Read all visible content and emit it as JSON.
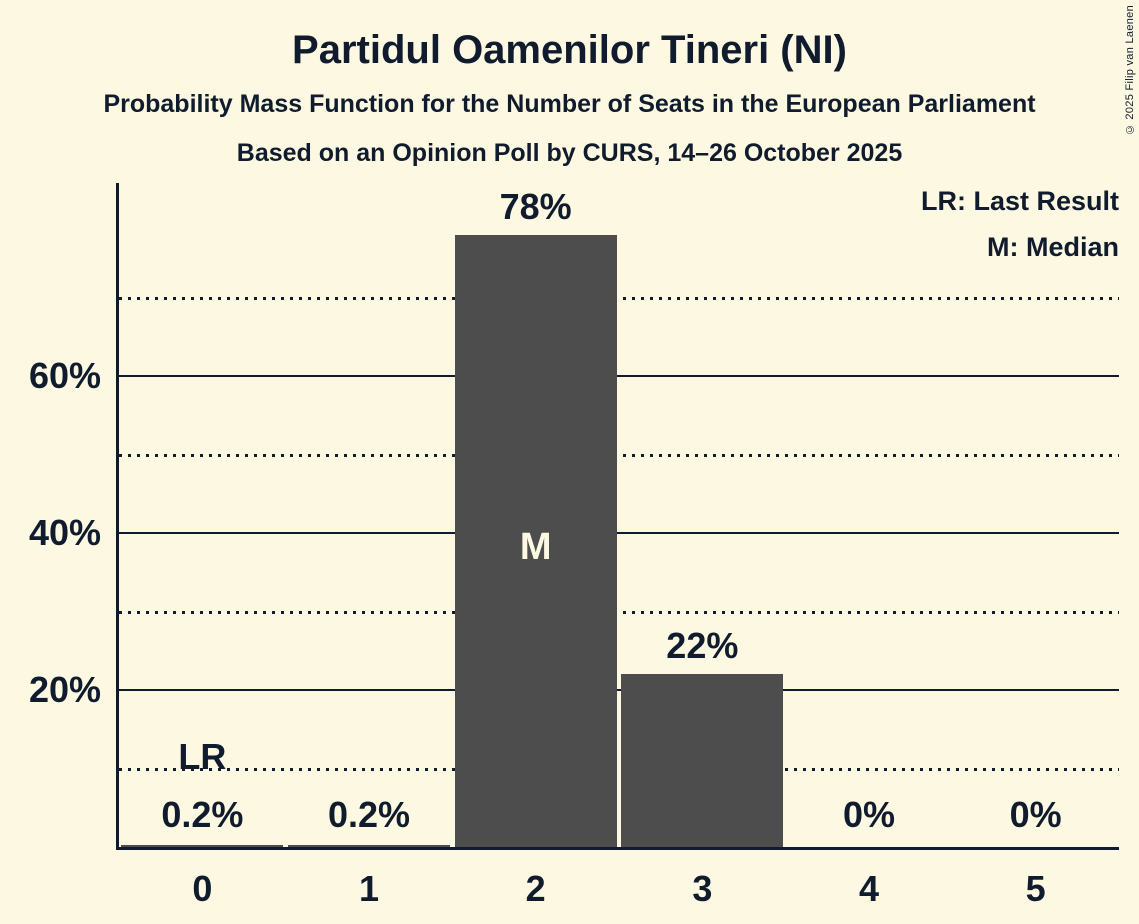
{
  "title": "Partidul Oamenilor Tineri (NI)",
  "subtitle1": "Probability Mass Function for the Number of Seats in the European Parliament",
  "subtitle2": "Based on an Opinion Poll by CURS, 14–26 October 2025",
  "copyright": "© 2025 Filip van Laenen",
  "legend": {
    "lr": "LR: Last Result",
    "m": "M: Median"
  },
  "colors": {
    "background": "#fdf8e1",
    "text": "#101c2e",
    "bar": "#4d4d4d",
    "bar_marker_text": "#fdf8e1"
  },
  "chart_data": {
    "type": "bar",
    "title": "Partidul Oamenilor Tineri (NI)",
    "xlabel": "",
    "ylabel": "",
    "categories": [
      "0",
      "1",
      "2",
      "3",
      "4",
      "5"
    ],
    "values": [
      0.2,
      0.2,
      78,
      22,
      0,
      0
    ],
    "value_labels": [
      "0.2%",
      "0.2%",
      "78%",
      "22%",
      "0%",
      "0%"
    ],
    "ylim": [
      0,
      85
    ],
    "y_tick_labels": [
      {
        "pct": 20,
        "label": "20%"
      },
      {
        "pct": 40,
        "label": "40%"
      },
      {
        "pct": 60,
        "label": "60%"
      }
    ],
    "y_solid_gridlines_pct": [
      20,
      40,
      60
    ],
    "y_dotted_gridlines_pct": [
      10,
      30,
      50,
      70
    ],
    "grid": "horizontal-only",
    "legend_position": "top-right-inside",
    "median": {
      "seat": "2",
      "marker": "M"
    },
    "last_result": {
      "seat": "0",
      "marker": "LR"
    }
  }
}
